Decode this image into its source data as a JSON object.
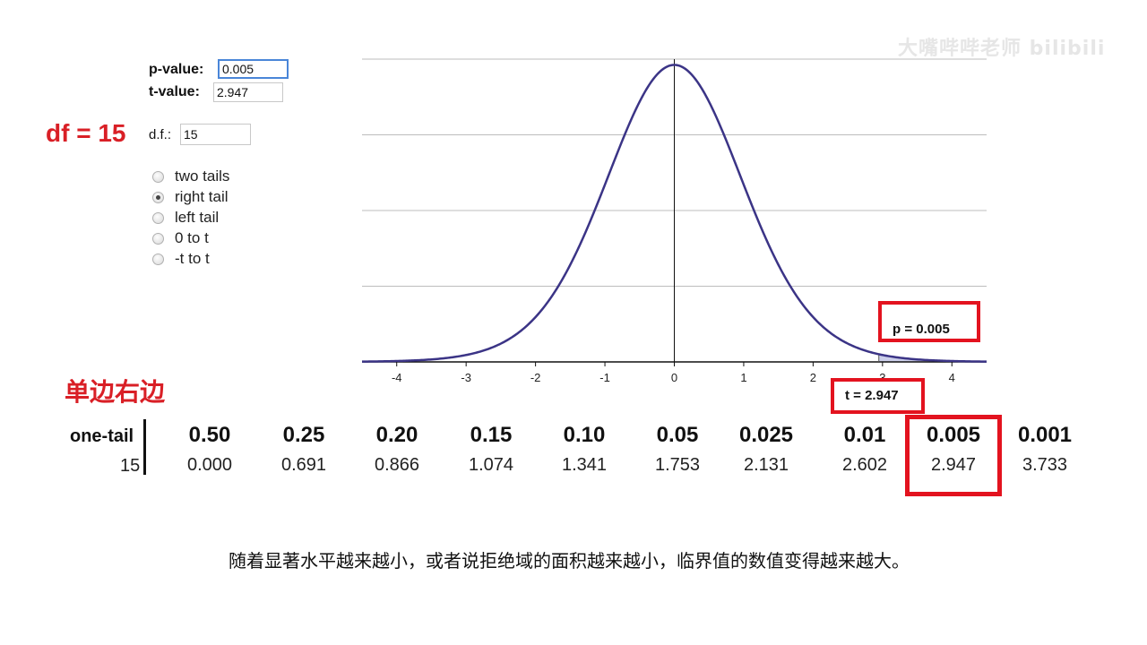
{
  "watermark": "大嘴哔哔老师 bilibili",
  "inputs": {
    "p_label": "p-value:",
    "p_value": "0.005",
    "t_label": "t-value:",
    "t_value": "2.947",
    "df_label": "d.f.:",
    "df_value": "15"
  },
  "df_annotation": "df = 15",
  "tail_options": [
    {
      "label": "two tails",
      "checked": false
    },
    {
      "label": "right tail",
      "checked": true
    },
    {
      "label": "left tail",
      "checked": false
    },
    {
      "label": "0 to t",
      "checked": false
    },
    {
      "label": "-t to t",
      "checked": false
    }
  ],
  "heading_cn": "单边右边",
  "chart_callouts": {
    "p": "p = 0.005",
    "t": "t = 2.947"
  },
  "chart_data": {
    "type": "line",
    "distribution": "t",
    "df": 15,
    "x_ticks": [
      "-4",
      "-3",
      "-2",
      "-1",
      "0",
      "1",
      "2",
      "3",
      "4"
    ],
    "xlim": [
      -4.5,
      4.5
    ],
    "ylim": [
      0,
      0.4
    ],
    "grid": true,
    "line_color": "#3b3486",
    "t_marker": 2.947,
    "shaded_tail": "right"
  },
  "table": {
    "row_header": "one-tail",
    "row_label": "15",
    "columns": [
      "0.50",
      "0.25",
      "0.20",
      "0.15",
      "0.10",
      "0.05",
      "0.025",
      "0.01",
      "0.005",
      "0.001"
    ],
    "values": [
      "0.000",
      "0.691",
      "0.866",
      "1.074",
      "1.341",
      "1.753",
      "2.131",
      "2.602",
      "2.947",
      "3.733"
    ],
    "highlight_index": 8
  },
  "caption_cn": "随着显著水平越来越小，或者说拒绝域的面积越来越小，临界值的数值变得越来越大。"
}
